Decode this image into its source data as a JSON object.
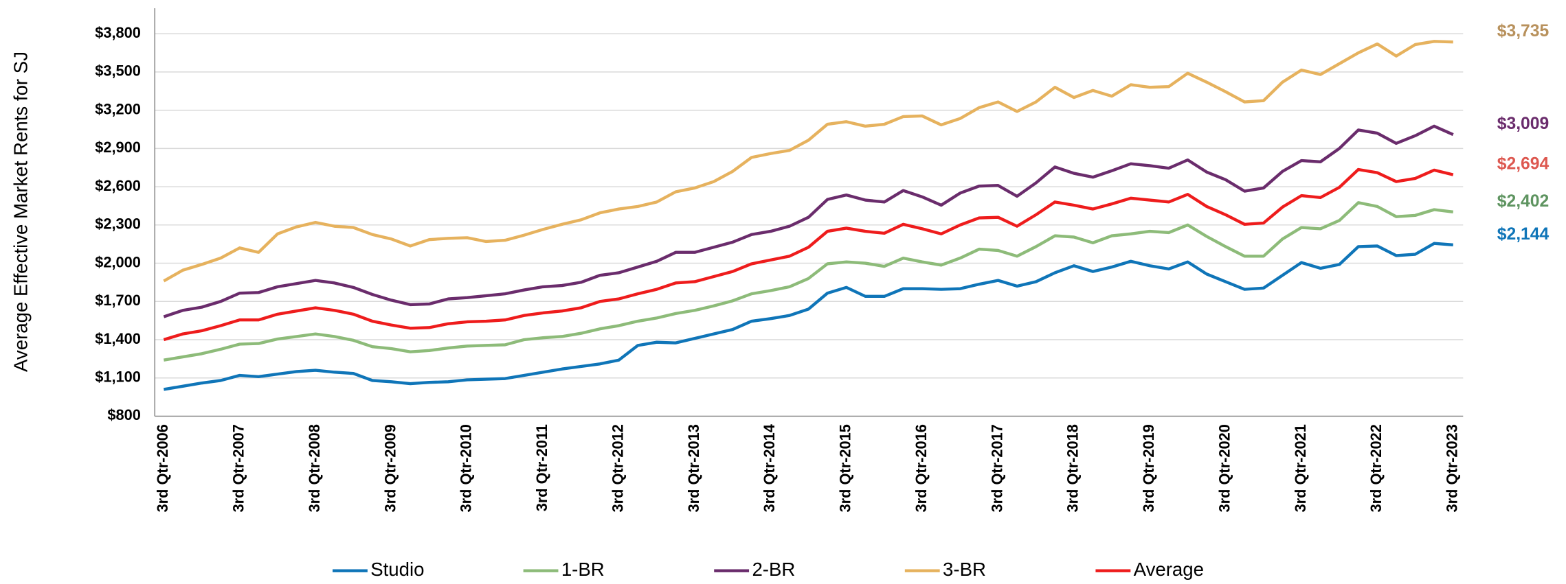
{
  "chart_data": {
    "type": "line",
    "y_axis_label": "Average Effective Market Rents for SJ",
    "categories": [
      "3rd Qtr-2006",
      null,
      null,
      null,
      "3rd Qtr-2007",
      null,
      null,
      null,
      "3rd Qtr-2008",
      null,
      null,
      null,
      "3rd Qtr-2009",
      null,
      null,
      null,
      "3rd Qtr-2010",
      null,
      null,
      null,
      "3rd Qtr-2011",
      null,
      null,
      null,
      "3rd Qtr-2012",
      null,
      null,
      null,
      "3rd Qtr-2013",
      null,
      null,
      null,
      "3rd Qtr-2014",
      null,
      null,
      null,
      "3rd Qtr-2015",
      null,
      null,
      null,
      "3rd Qtr-2016",
      null,
      null,
      null,
      "3rd Qtr-2017",
      null,
      null,
      null,
      "3rd Qtr-2018",
      null,
      null,
      null,
      "3rd Qtr-2019",
      null,
      null,
      null,
      "3rd Qtr-2020",
      null,
      null,
      null,
      "3rd Qtr-2021",
      null,
      null,
      null,
      "3rd Qtr-2022",
      null,
      null,
      null,
      "3rd Qtr-2023"
    ],
    "ylim": [
      800,
      4000
    ],
    "yticks": [
      {
        "value": 800,
        "label": "$800"
      },
      {
        "value": 1100,
        "label": "$1,100"
      },
      {
        "value": 1400,
        "label": "$1,400"
      },
      {
        "value": 1700,
        "label": "$1,700"
      },
      {
        "value": 2000,
        "label": "$2,000"
      },
      {
        "value": 2300,
        "label": "$2,300"
      },
      {
        "value": 2600,
        "label": "$2,600"
      },
      {
        "value": 2900,
        "label": "$2,900"
      },
      {
        "value": 3200,
        "label": "$3,200"
      },
      {
        "value": 3500,
        "label": "$3,500"
      },
      {
        "value": 3800,
        "label": "$3,800"
      }
    ],
    "grid": true,
    "legend": "bottom",
    "series": [
      {
        "name": "Studio",
        "color": "#0f75b8",
        "label_color": "#0f75b8",
        "values": [
          1010,
          1035,
          1060,
          1080,
          1120,
          1110,
          1130,
          1150,
          1160,
          1145,
          1135,
          1080,
          1070,
          1055,
          1065,
          1070,
          1085,
          1090,
          1095,
          1120,
          1145,
          1170,
          1190,
          1210,
          1240,
          1355,
          1380,
          1375,
          1410,
          1445,
          1480,
          1545,
          1565,
          1590,
          1640,
          1765,
          1810,
          1740,
          1740,
          1800,
          1800,
          1795,
          1800,
          1835,
          1865,
          1820,
          1855,
          1925,
          1980,
          1935,
          1970,
          2015,
          1980,
          1955,
          2010,
          1915,
          1855,
          1795,
          1805,
          1905,
          2005,
          1960,
          1990,
          2130,
          2135,
          2060,
          2070,
          2155,
          2144
        ],
        "value_labels": [
          null,
          null,
          null,
          null,
          null,
          null,
          null,
          null,
          null,
          null,
          null,
          null,
          null,
          null,
          null,
          null,
          null,
          null,
          null,
          null,
          null,
          null,
          null,
          null,
          null,
          null,
          null,
          null,
          null,
          null,
          null,
          null,
          null,
          null,
          null,
          null,
          null,
          null,
          null,
          null,
          null,
          null,
          null,
          null,
          null,
          null,
          null,
          null,
          null,
          null,
          null,
          null,
          null,
          null,
          null,
          null,
          null,
          null,
          null,
          null,
          null,
          null,
          null,
          null,
          null,
          null,
          null,
          null,
          "$2,144"
        ]
      },
      {
        "name": "1-BR",
        "color": "#8dbb79",
        "label_color": "#5e9460",
        "values": [
          1240,
          1265,
          1290,
          1325,
          1365,
          1370,
          1405,
          1425,
          1445,
          1425,
          1395,
          1345,
          1330,
          1305,
          1315,
          1335,
          1350,
          1355,
          1360,
          1400,
          1415,
          1425,
          1450,
          1485,
          1510,
          1545,
          1570,
          1605,
          1630,
          1665,
          1705,
          1760,
          1785,
          1815,
          1880,
          1995,
          2010,
          2000,
          1975,
          2040,
          2010,
          1985,
          2040,
          2110,
          2100,
          2055,
          2130,
          2215,
          2205,
          2160,
          2215,
          2230,
          2250,
          2240,
          2300,
          2210,
          2130,
          2055,
          2055,
          2190,
          2280,
          2270,
          2335,
          2475,
          2445,
          2365,
          2375,
          2420,
          2402
        ],
        "value_labels": [
          null,
          null,
          null,
          null,
          null,
          null,
          null,
          null,
          null,
          null,
          null,
          null,
          null,
          null,
          null,
          null,
          null,
          null,
          null,
          null,
          null,
          null,
          null,
          null,
          null,
          null,
          null,
          null,
          null,
          null,
          null,
          null,
          null,
          null,
          null,
          null,
          null,
          null,
          null,
          null,
          null,
          null,
          null,
          null,
          null,
          null,
          null,
          null,
          null,
          null,
          null,
          null,
          null,
          null,
          null,
          null,
          null,
          null,
          null,
          null,
          null,
          null,
          null,
          null,
          null,
          null,
          null,
          null,
          "$2,402"
        ]
      },
      {
        "name": "2-BR",
        "color": "#6a2c6c",
        "label_color": "#6a2c6c",
        "values": [
          1580,
          1630,
          1655,
          1700,
          1765,
          1770,
          1815,
          1840,
          1865,
          1845,
          1810,
          1755,
          1710,
          1675,
          1680,
          1720,
          1730,
          1745,
          1760,
          1790,
          1815,
          1825,
          1850,
          1905,
          1925,
          1970,
          2015,
          2085,
          2085,
          2125,
          2165,
          2225,
          2250,
          2290,
          2360,
          2500,
          2535,
          2495,
          2480,
          2570,
          2520,
          2455,
          2550,
          2605,
          2610,
          2525,
          2630,
          2755,
          2705,
          2675,
          2725,
          2780,
          2765,
          2745,
          2810,
          2715,
          2655,
          2565,
          2590,
          2720,
          2805,
          2795,
          2900,
          3045,
          3020,
          2940,
          3000,
          3075,
          3009
        ],
        "value_labels": [
          null,
          null,
          null,
          null,
          null,
          null,
          null,
          null,
          null,
          null,
          null,
          null,
          null,
          null,
          null,
          null,
          null,
          null,
          null,
          null,
          null,
          null,
          null,
          null,
          null,
          null,
          null,
          null,
          null,
          null,
          null,
          null,
          null,
          null,
          null,
          null,
          null,
          null,
          null,
          null,
          null,
          null,
          null,
          null,
          null,
          null,
          null,
          null,
          null,
          null,
          null,
          null,
          null,
          null,
          null,
          null,
          null,
          null,
          null,
          null,
          null,
          null,
          null,
          null,
          null,
          null,
          null,
          null,
          "$3,009"
        ]
      },
      {
        "name": "3-BR",
        "color": "#e6b25e",
        "label_color": "#b8915c",
        "values": [
          1860,
          1945,
          1990,
          2040,
          2120,
          2085,
          2230,
          2285,
          2320,
          2290,
          2280,
          2225,
          2190,
          2135,
          2185,
          2195,
          2200,
          2170,
          2180,
          2220,
          2265,
          2305,
          2340,
          2395,
          2425,
          2445,
          2480,
          2560,
          2590,
          2640,
          2720,
          2830,
          2860,
          2885,
          2965,
          3090,
          3110,
          3075,
          3090,
          3150,
          3155,
          3085,
          3135,
          3220,
          3265,
          3190,
          3265,
          3380,
          3300,
          3355,
          3310,
          3400,
          3380,
          3385,
          3490,
          3420,
          3345,
          3265,
          3275,
          3420,
          3515,
          3480,
          3565,
          3650,
          3720,
          3625,
          3715,
          3740,
          3735
        ],
        "value_labels": [
          null,
          null,
          null,
          null,
          null,
          null,
          null,
          null,
          null,
          null,
          null,
          null,
          null,
          null,
          null,
          null,
          null,
          null,
          null,
          null,
          null,
          null,
          null,
          null,
          null,
          null,
          null,
          null,
          null,
          null,
          null,
          null,
          null,
          null,
          null,
          null,
          null,
          null,
          null,
          null,
          null,
          null,
          null,
          null,
          null,
          null,
          null,
          null,
          null,
          null,
          null,
          null,
          null,
          null,
          null,
          null,
          null,
          null,
          null,
          null,
          null,
          null,
          null,
          null,
          null,
          null,
          null,
          null,
          "$3,735"
        ]
      },
      {
        "name": "Average",
        "color": "#ee1c1c",
        "label_color": "#dd5850",
        "values": [
          1400,
          1445,
          1470,
          1510,
          1555,
          1555,
          1600,
          1625,
          1650,
          1630,
          1600,
          1545,
          1515,
          1490,
          1495,
          1525,
          1540,
          1545,
          1555,
          1590,
          1610,
          1625,
          1650,
          1700,
          1720,
          1760,
          1795,
          1845,
          1855,
          1895,
          1935,
          1995,
          2025,
          2055,
          2125,
          2250,
          2275,
          2250,
          2235,
          2305,
          2270,
          2230,
          2300,
          2355,
          2360,
          2290,
          2380,
          2480,
          2455,
          2425,
          2465,
          2510,
          2495,
          2480,
          2540,
          2445,
          2380,
          2305,
          2315,
          2440,
          2530,
          2515,
          2595,
          2735,
          2710,
          2640,
          2665,
          2730,
          2694
        ],
        "value_labels": [
          null,
          null,
          null,
          null,
          null,
          null,
          null,
          null,
          null,
          null,
          null,
          null,
          null,
          null,
          null,
          null,
          null,
          null,
          null,
          null,
          null,
          null,
          null,
          null,
          null,
          null,
          null,
          null,
          null,
          null,
          null,
          null,
          null,
          null,
          null,
          null,
          null,
          null,
          null,
          null,
          null,
          null,
          null,
          null,
          null,
          null,
          null,
          null,
          null,
          null,
          null,
          null,
          null,
          null,
          null,
          null,
          null,
          null,
          null,
          null,
          null,
          null,
          null,
          null,
          null,
          null,
          null,
          null,
          "$2,694"
        ]
      }
    ]
  }
}
